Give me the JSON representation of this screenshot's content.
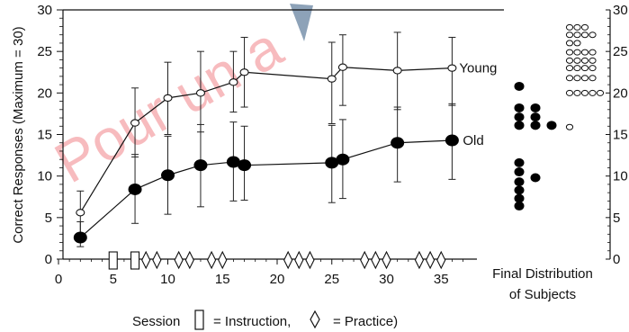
{
  "chart_data": {
    "type": "line",
    "xlabel": "Session",
    "ylabel": "Correct Responses (Maximum = 30)",
    "xlim": [
      0,
      40
    ],
    "ylim": [
      0,
      30
    ],
    "x_ticks": [
      0,
      5,
      10,
      15,
      20,
      25,
      30,
      35
    ],
    "y_ticks": [
      0,
      5,
      10,
      15,
      20,
      25,
      30
    ],
    "series": [
      {
        "name": "Young",
        "marker": "open-circle",
        "points": [
          {
            "x": 2,
            "y": 5.6,
            "lo": 3.0,
            "hi": 8.2
          },
          {
            "x": 7,
            "y": 16.4,
            "lo": 12.3,
            "hi": 20.6
          },
          {
            "x": 10,
            "y": 19.4,
            "lo": 15.0,
            "hi": 23.7
          },
          {
            "x": 13,
            "y": 20.0,
            "lo": 15.3,
            "hi": 25.0
          },
          {
            "x": 16,
            "y": 21.3,
            "lo": 17.7,
            "hi": 25.0
          },
          {
            "x": 17,
            "y": 22.5,
            "lo": 18.3,
            "hi": 26.7
          },
          {
            "x": 25,
            "y": 21.7,
            "lo": 16.3,
            "hi": 26.1
          },
          {
            "x": 26,
            "y": 23.1,
            "lo": 18.5,
            "hi": 27.0
          },
          {
            "x": 31,
            "y": 22.7,
            "lo": 18.0,
            "hi": 27.3
          },
          {
            "x": 36,
            "y": 23.0,
            "lo": 18.5,
            "hi": 26.7
          }
        ]
      },
      {
        "name": "Old",
        "marker": "filled-circle",
        "points": [
          {
            "x": 2,
            "y": 2.6,
            "lo": 1.5,
            "hi": 4.5
          },
          {
            "x": 7,
            "y": 8.4,
            "lo": 4.3,
            "hi": 12.6
          },
          {
            "x": 10,
            "y": 10.1,
            "lo": 5.4,
            "hi": 14.8
          },
          {
            "x": 13,
            "y": 11.3,
            "lo": 6.3,
            "hi": 16.2
          },
          {
            "x": 16,
            "y": 11.7,
            "lo": 7.0,
            "hi": 16.5
          },
          {
            "x": 17,
            "y": 11.3,
            "lo": 7.1,
            "hi": 16.0
          },
          {
            "x": 25,
            "y": 11.6,
            "lo": 6.8,
            "hi": 16.1
          },
          {
            "x": 26,
            "y": 12.0,
            "lo": 7.3,
            "hi": 16.8
          },
          {
            "x": 31,
            "y": 14.0,
            "lo": 9.3,
            "hi": 18.3
          },
          {
            "x": 36,
            "y": 14.3,
            "lo": 9.6,
            "hi": 18.7
          }
        ]
      }
    ],
    "session_markers": {
      "instruction": [
        5,
        7
      ],
      "practice": [
        8,
        9,
        11,
        12,
        14,
        15,
        21,
        22,
        23,
        28,
        29,
        30,
        33,
        34,
        35
      ]
    },
    "final_distribution": {
      "label_line1": "Final Distribution",
      "label_line2": "of Subjects",
      "old_columns": [
        [
          20.8,
          18.2,
          17.1,
          16.1,
          11.6,
          10.5,
          9.3,
          8.3,
          7.3,
          6.4
        ],
        [
          18.2,
          17.1,
          16.1,
          9.8
        ],
        [
          16.1
        ]
      ],
      "young_columns": [
        [
          27.9,
          27.0,
          26.0,
          24.9,
          23.9,
          23.0,
          21.8,
          20.0,
          15.9
        ],
        [
          27.9,
          27.0,
          26.0,
          24.9,
          23.9,
          23.0,
          21.8,
          20.0
        ],
        [
          27.9,
          27.0,
          24.9,
          23.9,
          23.0,
          21.8,
          20.0
        ],
        [
          27.0,
          24.9,
          23.9,
          23.0,
          21.8,
          20.0
        ],
        [
          20.0
        ]
      ]
    },
    "footer": {
      "session_text": "Session",
      "instruction_text": "= Instruction,",
      "practice_text": "= Practice)"
    },
    "watermark": "Pour un a"
  }
}
